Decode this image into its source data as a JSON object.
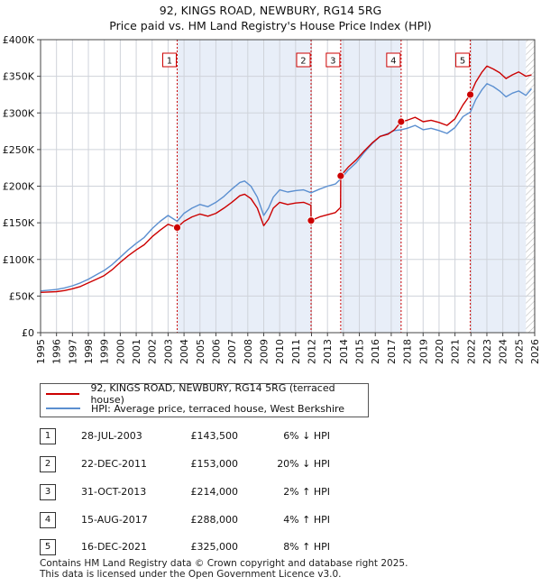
{
  "title_line1": "92, KINGS ROAD, NEWBURY, RG14 5RG",
  "title_line2": "Price paid vs. HM Land Registry's House Price Index (HPI)",
  "colors": {
    "price": "#cc0000",
    "hpi": "#5b8fd0",
    "band": "#e8eef8",
    "vline": "#cc0000"
  },
  "legend": {
    "price_label": "92, KINGS ROAD, NEWBURY, RG14 5RG (terraced house)",
    "hpi_label": "HPI: Average price, terraced house, West Berkshire"
  },
  "sales": [
    {
      "num": "1",
      "date": "28-JUL-2003",
      "price": "£143,500",
      "hpi": "6% ↓ HPI"
    },
    {
      "num": "2",
      "date": "22-DEC-2011",
      "price": "£153,000",
      "hpi": "20% ↓ HPI"
    },
    {
      "num": "3",
      "date": "31-OCT-2013",
      "price": "£214,000",
      "hpi": "2% ↑ HPI"
    },
    {
      "num": "4",
      "date": "15-AUG-2017",
      "price": "£288,000",
      "hpi": "4% ↑ HPI"
    },
    {
      "num": "5",
      "date": "16-DEC-2021",
      "price": "£325,000",
      "hpi": "8% ↑ HPI"
    }
  ],
  "footer_line1": "Contains HM Land Registry data © Crown copyright and database right 2025.",
  "footer_line2": "This data is licensed under the Open Government Licence v3.0.",
  "chart_data": {
    "type": "line",
    "title": "92, KINGS ROAD, NEWBURY, RG14 5RG — Price paid vs. HM Land Registry's House Price Index (HPI)",
    "xlabel": "",
    "ylabel": "",
    "xlim": [
      1995,
      2026
    ],
    "ylim": [
      0,
      400000
    ],
    "x_ticks": [
      1995,
      1996,
      1997,
      1998,
      1999,
      2000,
      2001,
      2002,
      2003,
      2004,
      2005,
      2006,
      2007,
      2008,
      2009,
      2010,
      2011,
      2012,
      2013,
      2014,
      2015,
      2016,
      2017,
      2018,
      2019,
      2020,
      2021,
      2022,
      2023,
      2024,
      2025,
      2026
    ],
    "y_ticks": [
      0,
      50000,
      100000,
      150000,
      200000,
      250000,
      300000,
      350000,
      400000
    ],
    "y_tick_labels": [
      "£0",
      "£50K",
      "£100K",
      "£150K",
      "£200K",
      "£250K",
      "£300K",
      "£350K",
      "£400K"
    ],
    "grid": true,
    "legend_position": "below",
    "shaded_periods": [
      [
        2003.57,
        2011.97
      ],
      [
        2013.83,
        2017.62
      ],
      [
        2021.96,
        2025.45
      ]
    ],
    "hatched_region_from": 2025.45,
    "sale_markers": [
      {
        "label": "1",
        "x": 2003.57,
        "y": 143500
      },
      {
        "label": "2",
        "x": 2011.97,
        "y": 153000
      },
      {
        "label": "3",
        "x": 2013.83,
        "y": 214000
      },
      {
        "label": "4",
        "x": 2017.62,
        "y": 288000
      },
      {
        "label": "5",
        "x": 2021.96,
        "y": 325000
      }
    ],
    "series": [
      {
        "name": "HPI: Average price, terraced house, West Berkshire",
        "x": [
          1995.0,
          1995.5,
          1996.0,
          1996.5,
          1997.0,
          1997.5,
          1998.0,
          1998.5,
          1999.0,
          1999.5,
          2000.0,
          2000.5,
          2001.0,
          2001.5,
          2002.0,
          2002.5,
          2003.0,
          2003.57,
          2004.0,
          2004.5,
          2005.0,
          2005.5,
          2006.0,
          2006.5,
          2007.0,
          2007.5,
          2007.8,
          2008.2,
          2008.6,
          2009.0,
          2009.3,
          2009.6,
          2010.0,
          2010.5,
          2011.0,
          2011.5,
          2011.97,
          2012.5,
          2013.0,
          2013.5,
          2013.83,
          2014.3,
          2014.8,
          2015.3,
          2015.8,
          2016.3,
          2016.8,
          2017.2,
          2017.62,
          2018.0,
          2018.5,
          2019.0,
          2019.5,
          2020.0,
          2020.5,
          2021.0,
          2021.5,
          2021.96,
          2022.3,
          2022.7,
          2023.0,
          2023.4,
          2023.8,
          2024.2,
          2024.6,
          2025.0,
          2025.45,
          2025.8
        ],
        "values": [
          57000,
          58000,
          59000,
          61000,
          64000,
          68000,
          73000,
          79000,
          85000,
          93000,
          103000,
          113000,
          122000,
          130000,
          142000,
          152000,
          160000,
          152000,
          163000,
          170000,
          175000,
          172000,
          178000,
          186000,
          196000,
          205000,
          207000,
          200000,
          185000,
          160000,
          170000,
          185000,
          195000,
          192000,
          194000,
          195000,
          191000,
          196000,
          200000,
          203000,
          210000,
          222000,
          232000,
          246000,
          258000,
          268000,
          272000,
          276000,
          277000,
          279000,
          283000,
          277000,
          279000,
          276000,
          272000,
          280000,
          295000,
          301000,
          318000,
          332000,
          340000,
          336000,
          330000,
          322000,
          327000,
          330000,
          324000,
          333000
        ]
      },
      {
        "name": "92, KINGS ROAD, NEWBURY, RG14 5RG (terraced house)",
        "x": [
          1995.0,
          1995.5,
          1996.0,
          1996.5,
          1997.0,
          1997.5,
          1998.0,
          1998.5,
          1999.0,
          1999.5,
          2000.0,
          2000.5,
          2001.0,
          2001.5,
          2002.0,
          2002.5,
          2003.0,
          2003.57,
          2004.0,
          2004.5,
          2005.0,
          2005.5,
          2006.0,
          2006.5,
          2007.0,
          2007.5,
          2007.8,
          2008.2,
          2008.6,
          2009.0,
          2009.3,
          2009.6,
          2010.0,
          2010.5,
          2011.0,
          2011.5,
          2011.96,
          2011.97,
          2012.5,
          2013.0,
          2013.5,
          2013.82,
          2013.83,
          2014.3,
          2014.8,
          2015.3,
          2015.8,
          2016.3,
          2016.8,
          2017.2,
          2017.62,
          2018.0,
          2018.5,
          2019.0,
          2019.5,
          2020.0,
          2020.5,
          2021.0,
          2021.5,
          2021.96,
          2022.3,
          2022.7,
          2023.0,
          2023.4,
          2023.8,
          2024.2,
          2024.6,
          2025.0,
          2025.45,
          2025.8
        ],
        "values": [
          55000,
          55500,
          56000,
          57500,
          60000,
          63000,
          68000,
          73000,
          78000,
          86000,
          96000,
          105000,
          113000,
          120000,
          131000,
          140000,
          148000,
          143500,
          152000,
          158000,
          162000,
          159000,
          163000,
          170000,
          178000,
          187000,
          189000,
          183000,
          170000,
          146000,
          155000,
          170000,
          178000,
          175000,
          177000,
          178000,
          174000,
          153000,
          158000,
          161000,
          164000,
          171000,
          214000,
          226000,
          236000,
          248000,
          259000,
          268000,
          271000,
          277000,
          288000,
          290000,
          294000,
          288000,
          290000,
          287000,
          283000,
          292000,
          311000,
          325000,
          342000,
          356000,
          364000,
          360000,
          355000,
          347000,
          352000,
          356000,
          350000,
          352000
        ]
      }
    ]
  }
}
